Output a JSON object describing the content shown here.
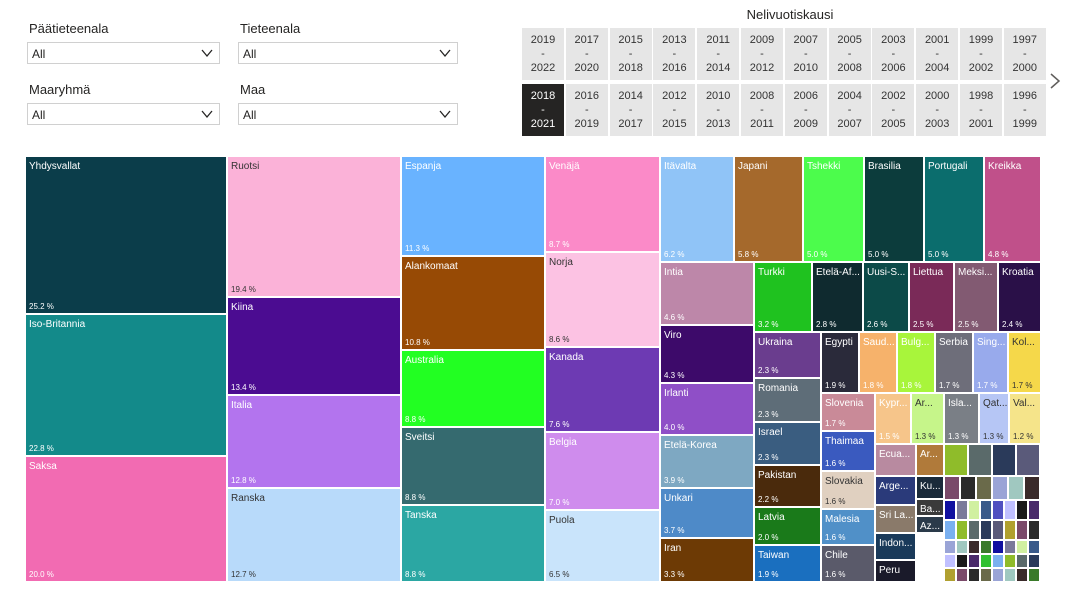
{
  "filters": [
    {
      "label": "Päätieteenala",
      "value": "All"
    },
    {
      "label": "Tieteenala",
      "value": "All"
    },
    {
      "label": "Maaryhmä",
      "value": "All"
    },
    {
      "label": "Maa",
      "value": "All"
    }
  ],
  "period_slicer": {
    "title": "Nelivuotiskausi",
    "options": [
      {
        "start": "2019",
        "end": "2022"
      },
      {
        "start": "2017",
        "end": "2020"
      },
      {
        "start": "2015",
        "end": "2018"
      },
      {
        "start": "2013",
        "end": "2016"
      },
      {
        "start": "2011",
        "end": "2014"
      },
      {
        "start": "2009",
        "end": "2012"
      },
      {
        "start": "2007",
        "end": "2010"
      },
      {
        "start": "2005",
        "end": "2008"
      },
      {
        "start": "2003",
        "end": "2006"
      },
      {
        "start": "2001",
        "end": "2004"
      },
      {
        "start": "1999",
        "end": "2002"
      },
      {
        "start": "1997",
        "end": "2000"
      },
      {
        "start": "2018",
        "end": "2021"
      },
      {
        "start": "2016",
        "end": "2019"
      },
      {
        "start": "2014",
        "end": "2017"
      },
      {
        "start": "2012",
        "end": "2015"
      },
      {
        "start": "2010",
        "end": "2013"
      },
      {
        "start": "2008",
        "end": "2011"
      },
      {
        "start": "2006",
        "end": "2009"
      },
      {
        "start": "2004",
        "end": "2007"
      },
      {
        "start": "2002",
        "end": "2005"
      },
      {
        "start": "2000",
        "end": "2003"
      },
      {
        "start": "1998",
        "end": "2001"
      },
      {
        "start": "1996",
        "end": "1999"
      }
    ],
    "selected": "2018 - 2021",
    "separator": "-"
  },
  "chart_data": {
    "type": "treemap",
    "unit": "%",
    "items": [
      {
        "name": "Yhdysvallat",
        "value": 25.2,
        "color": "#0b3d4a"
      },
      {
        "name": "Iso-Britannia",
        "value": 22.8,
        "color": "#138a8a"
      },
      {
        "name": "Saksa",
        "value": 20.0,
        "color": "#f26bb2"
      },
      {
        "name": "Ruotsi",
        "value": 19.4,
        "color": "#fbb2d8"
      },
      {
        "name": "Kiina",
        "value": 13.4,
        "color": "#4b0c91"
      },
      {
        "name": "Italia",
        "value": 12.8,
        "color": "#b374ee"
      },
      {
        "name": "Ranska",
        "value": 12.7,
        "color": "#b8dafa"
      },
      {
        "name": "Espanja",
        "value": 11.3,
        "color": "#69b3ff"
      },
      {
        "name": "Alankomaat",
        "value": 10.8,
        "color": "#974a05"
      },
      {
        "name": "Australia",
        "value": 8.8,
        "color": "#22ff22"
      },
      {
        "name": "Sveitsi",
        "value": 8.8,
        "color": "#356a6f"
      },
      {
        "name": "Tanska",
        "value": 8.8,
        "color": "#2ba7a3"
      },
      {
        "name": "Venäjä",
        "value": 8.7,
        "color": "#fb8ac8"
      },
      {
        "name": "Norja",
        "value": 8.6,
        "color": "#fcc2e3"
      },
      {
        "name": "Kanada",
        "value": 7.6,
        "color": "#6d3ab3"
      },
      {
        "name": "Belgia",
        "value": 7.0,
        "color": "#cf8ced"
      },
      {
        "name": "Puola",
        "value": 6.5,
        "color": "#c9e4fb"
      },
      {
        "name": "Itävalta",
        "value": 6.2,
        "color": "#90c4f7"
      },
      {
        "name": "Japani",
        "value": 5.8,
        "color": "#a5692c"
      },
      {
        "name": "Tshekki",
        "value": 5.0,
        "color": "#4cfc4c"
      },
      {
        "name": "Brasilia",
        "value": 5.0,
        "color": "#0c3c3c"
      },
      {
        "name": "Portugali",
        "value": 5.0,
        "color": "#0b6d6d"
      },
      {
        "name": "Kreikka",
        "value": 4.8,
        "color": "#c0508a"
      },
      {
        "name": "Intia",
        "value": 4.6,
        "color": "#bd87a9"
      },
      {
        "name": "Viro",
        "value": 4.3,
        "color": "#3d0a6a"
      },
      {
        "name": "Irlanti",
        "value": 4.0,
        "color": "#8f4fc7"
      },
      {
        "name": "Etelä-Korea",
        "value": 3.9,
        "color": "#7ea8c2"
      },
      {
        "name": "Unkari",
        "value": 3.7,
        "color": "#4e8ac8"
      },
      {
        "name": "Iran",
        "value": 3.3,
        "color": "#6d3a05"
      },
      {
        "name": "Turkki",
        "value": 3.2,
        "color": "#1fc21f"
      },
      {
        "name": "Etelä-Af...",
        "value": 2.8,
        "color": "#0f2a2f"
      },
      {
        "name": "Uusi-S...",
        "value": 2.6,
        "color": "#0c4a48"
      },
      {
        "name": "Liettua",
        "value": 2.5,
        "color": "#7a2a58"
      },
      {
        "name": "Meksi...",
        "value": 2.5,
        "color": "#825a72"
      },
      {
        "name": "Kroatia",
        "value": 2.4,
        "color": "#2a1048"
      },
      {
        "name": "Ukraina",
        "value": 2.3,
        "color": "#6a3d8e"
      },
      {
        "name": "Romania",
        "value": 2.3,
        "color": "#5e6d78"
      },
      {
        "name": "Israel",
        "value": 2.3,
        "color": "#3a5d80"
      },
      {
        "name": "Pakistan",
        "value": 2.2,
        "color": "#4a2a0c"
      },
      {
        "name": "Latvia",
        "value": 2.0,
        "color": "#1a7a1a"
      },
      {
        "name": "Taiwan",
        "value": 1.9,
        "color": "#1a6fbf"
      },
      {
        "name": "Egypti",
        "value": 1.9,
        "color": "#2a2a3a"
      },
      {
        "name": "Saud...",
        "value": 1.8,
        "color": "#f6b26b"
      },
      {
        "name": "Bulg...",
        "value": 1.8,
        "color": "#a8f53b"
      },
      {
        "name": "Serbia",
        "value": 1.7,
        "color": "#6e6e7a"
      },
      {
        "name": "Sing...",
        "value": 1.7,
        "color": "#98aaec"
      },
      {
        "name": "Kol...",
        "value": 1.7,
        "color": "#f5d84a"
      },
      {
        "name": "Slovenia",
        "value": 1.7,
        "color": "#c98a98"
      },
      {
        "name": "Kypr...",
        "value": 1.5,
        "color": "#f6c58a"
      },
      {
        "name": "Ar...",
        "value": 1.3,
        "color": "#c6f58a"
      },
      {
        "name": "Isla...",
        "value": 1.3,
        "color": "#7a7f86"
      },
      {
        "name": "Qat...",
        "value": 1.3,
        "color": "#b6c6f5"
      },
      {
        "name": "Val...",
        "value": 1.2,
        "color": "#f5e48a"
      },
      {
        "name": "Thaimaa",
        "value": 1.6,
        "color": "#3a5abf"
      },
      {
        "name": "Slovakia",
        "value": 1.6,
        "color": "#e0d0c0"
      },
      {
        "name": "Malesia",
        "value": 1.6,
        "color": "#5090c8"
      },
      {
        "name": "Chile",
        "value": 1.6,
        "color": "#5a5a6a"
      },
      {
        "name": "Ecua...",
        "value": null,
        "color": "#b88aa0"
      },
      {
        "name": "Ar...",
        "value": null,
        "color": "#b07a3a"
      },
      {
        "name": "Arge...",
        "value": null,
        "color": "#2a3a7a"
      },
      {
        "name": "Ku...",
        "value": null,
        "color": "#1a2a3a"
      },
      {
        "name": "Sri La...",
        "value": null,
        "color": "#8a7a6a"
      },
      {
        "name": "Ba...",
        "value": null,
        "color": "#3a3a3a"
      },
      {
        "name": "Indon...",
        "value": null,
        "color": "#1a3a5a"
      },
      {
        "name": "Az...",
        "value": null,
        "color": "#2a3a4a"
      },
      {
        "name": "Peru",
        "value": null,
        "color": "#1a1a2a"
      }
    ]
  }
}
